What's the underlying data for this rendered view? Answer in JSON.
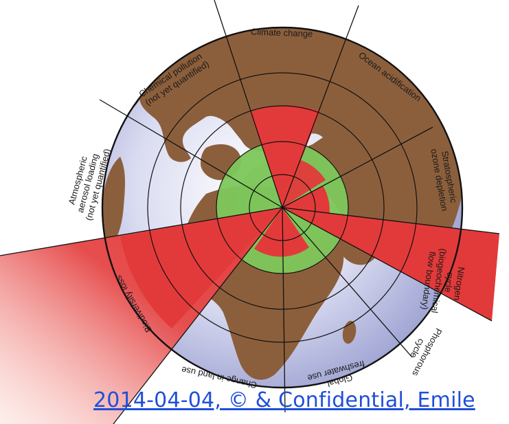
{
  "diagram": {
    "segments": [
      {
        "label_lines": [
          "Climate change"
        ]
      },
      {
        "label_lines": [
          "Ocean acidification"
        ]
      },
      {
        "label_lines": [
          "Stratospheric",
          "ozone depletion"
        ]
      },
      {
        "label_lines": [
          "Nitrogen",
          "cycle",
          "(biogeochemical",
          "flow boundary)"
        ]
      },
      {
        "label_lines": [
          "Phosphorous",
          "cycle"
        ]
      },
      {
        "label_lines": [
          "Global",
          "freshwater use"
        ]
      },
      {
        "label_lines": [
          "Change in land use"
        ]
      },
      {
        "label_lines": [
          "Biodiversity loss"
        ]
      },
      {
        "label_lines": [
          "Atmospheric",
          "aerosol loading",
          "(not yet quantified)"
        ]
      },
      {
        "label_lines": [
          "Chemical pollution",
          "(not yet quantified)"
        ]
      }
    ],
    "colors": {
      "ocean": "#c9cdea",
      "land": "#8c5f3c",
      "safe_zone": "#7dc75b",
      "exceeded": "#e23a3a",
      "grid": "#111111"
    }
  },
  "footer": {
    "text": "2014-04-04, © & Confidential, Emile"
  }
}
